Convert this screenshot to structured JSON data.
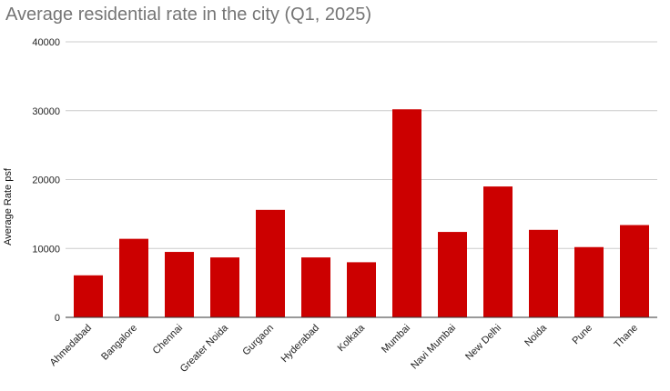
{
  "chart_data": {
    "type": "bar",
    "title": "Average residential rate in the city (Q1, 2025)",
    "xlabel": "",
    "ylabel": "Average Rate psf",
    "ylim": [
      0,
      40000
    ],
    "yticks": [
      0,
      10000,
      20000,
      30000,
      40000
    ],
    "grid": true,
    "legend": "none",
    "categories": [
      "Ahmedabad",
      "Bangalore",
      "Chennai",
      "Greater Noida",
      "Gurgaon",
      "Hyderabad",
      "Kolkata",
      "Mumbai",
      "Navi Mumbai",
      "New Delhi",
      "Noida",
      "Pune",
      "Thane"
    ],
    "values": [
      6100,
      11400,
      9500,
      8700,
      15600,
      8700,
      8000,
      30200,
      12400,
      19000,
      12700,
      10200,
      13400
    ],
    "bar_color": "#cc0000",
    "grid_color": "#cccccc",
    "axis_color": "#333333"
  }
}
